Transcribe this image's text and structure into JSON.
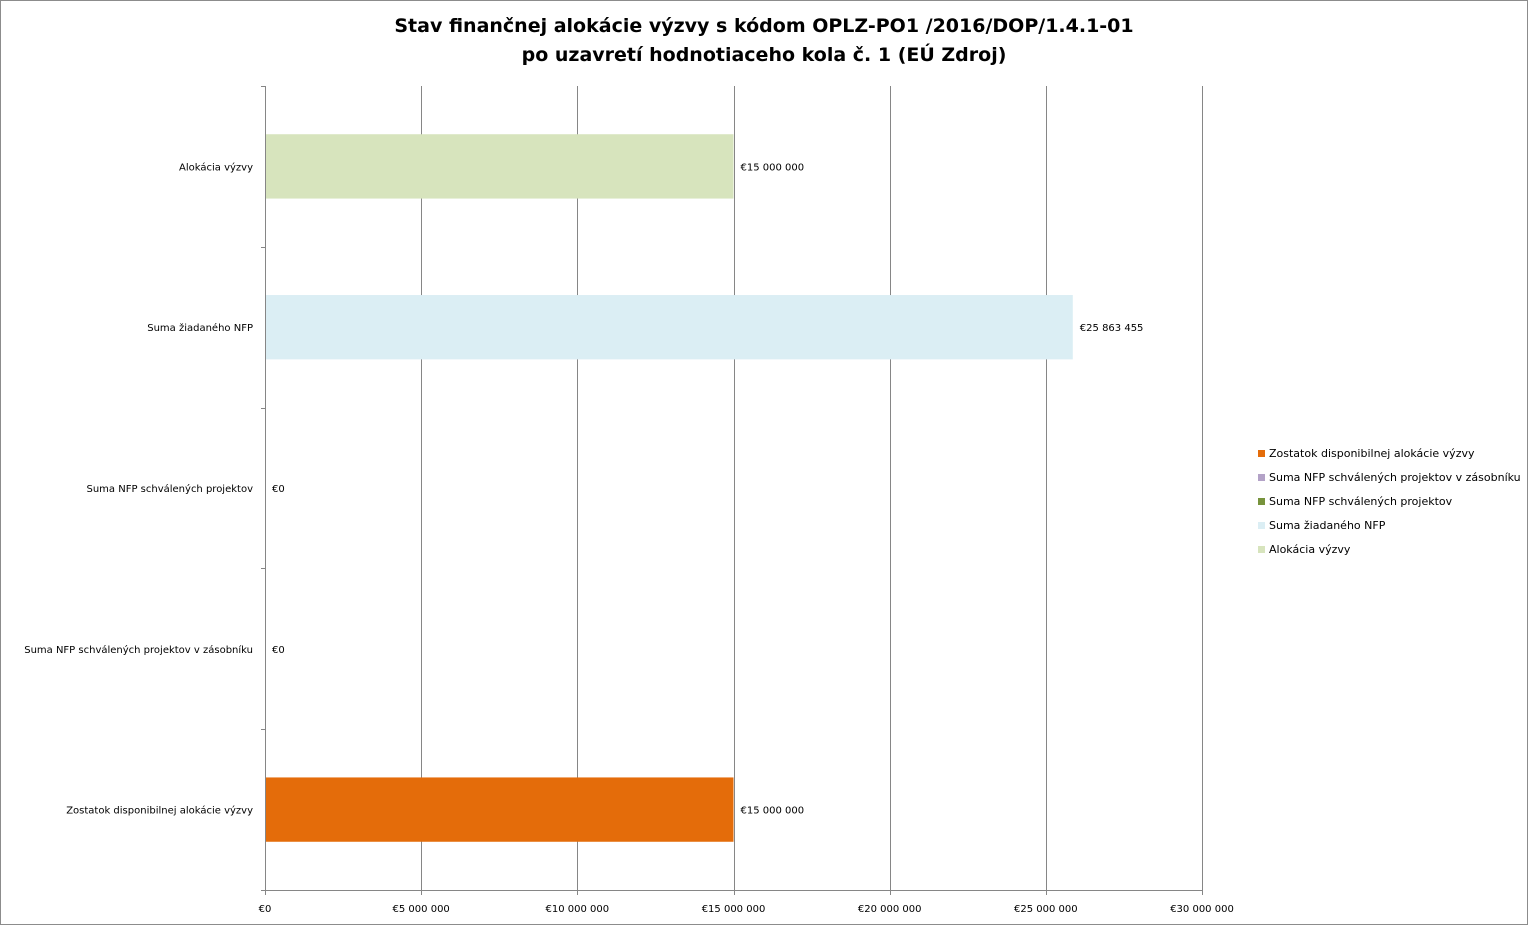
{
  "chart_data": {
    "type": "bar",
    "orientation": "horizontal",
    "title": "Stav finančnej alokácie výzvy s kódom OPLZ-PO1 /2016/DOP/1.4.1-01",
    "subtitle": "po uzavretí hodnotiaceho kola č. 1 (EÚ Zdroj)",
    "categories": [
      "Alokácia výzvy",
      "Suma žiadaného NFP",
      "Suma NFP schválených projektov",
      "Suma NFP schválených projektov v zásobníku",
      "Zostatok disponibilnej alokácie výzvy"
    ],
    "values": [
      15000000,
      25863455,
      0,
      0,
      15000000
    ],
    "data_labels": [
      "€15 000 000",
      "€25 863 455",
      "€0",
      "€0",
      "€15 000 000"
    ],
    "colors": [
      "#d7e4bd",
      "#dbeef4",
      "#77933c",
      "#b3a2c7",
      "#e46c0a"
    ],
    "xlim": [
      0,
      30000000
    ],
    "x_ticks": [
      0,
      5000000,
      10000000,
      15000000,
      20000000,
      25000000,
      30000000
    ],
    "x_tick_labels": [
      "€0",
      "€5 000 000",
      "€10 000 000",
      "€15 000 000",
      "€20 000 000",
      "€25 000 000",
      "€30 000 000"
    ],
    "grid": "vertical",
    "legend_position": "right",
    "legend": [
      {
        "name": "Zostatok disponibilnej alokácie výzvy",
        "color": "#e46c0a"
      },
      {
        "name": "Suma NFP schválených projektov v zásobníku",
        "color": "#b3a2c7"
      },
      {
        "name": "Suma NFP schválených projektov",
        "color": "#77933c"
      },
      {
        "name": "Suma žiadaného NFP",
        "color": "#dbeef4"
      },
      {
        "name": "Alokácia výzvy",
        "color": "#d7e4bd"
      }
    ]
  }
}
